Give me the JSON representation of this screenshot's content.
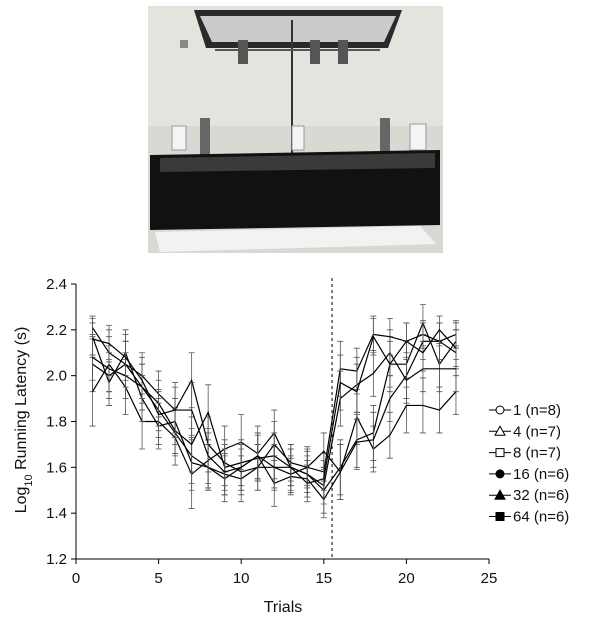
{
  "chart_data": {
    "type": "line",
    "xlabel": "Trials",
    "ylabel": "Log",
    "ylabel_subscript": "10",
    "ylabel_rest": " Running Latency (s)",
    "xlim": [
      0,
      25
    ],
    "xticks": [
      0,
      5,
      10,
      15,
      20,
      25
    ],
    "ylim": [
      1.2,
      2.4
    ],
    "yticks": [
      1.2,
      1.4,
      1.6,
      1.8,
      {
        "value": 2,
        "label": "2.0"
      },
      2.2,
      2.4
    ],
    "vline": 15.5,
    "legend": "right",
    "x": [
      1,
      2,
      3,
      4,
      5,
      6,
      7,
      8,
      9,
      10,
      11,
      12,
      13,
      14,
      15,
      16,
      17,
      18,
      19,
      20,
      21,
      22,
      23
    ],
    "series": [
      {
        "name": "1 (n=8)",
        "color": "#000000",
        "marker": "circle",
        "filled": false,
        "values": [
          2.05,
          2.0,
          2.05,
          1.95,
          1.85,
          1.75,
          1.65,
          1.6,
          1.57,
          1.55,
          1.6,
          1.6,
          1.57,
          1.6,
          1.67,
          1.58,
          1.82,
          1.68,
          1.74,
          1.87,
          1.87,
          1.85,
          1.93
        ],
        "errors": [
          0.12,
          0.1,
          0.1,
          0.1,
          0.09,
          0.1,
          0.12,
          0.1,
          0.09,
          0.1,
          0.1,
          0.09,
          0.08,
          0.09,
          0.08,
          0.12,
          0.12,
          0.1,
          0.1,
          0.12,
          0.12,
          0.1,
          0.1
        ]
      },
      {
        "name": "4 (n=7)",
        "color": "#000000",
        "marker": "triangle",
        "filled": false,
        "values": [
          1.93,
          2.05,
          1.95,
          1.8,
          1.8,
          1.73,
          1.57,
          1.63,
          1.68,
          1.71,
          1.66,
          1.75,
          1.6,
          1.57,
          1.5,
          1.6,
          1.72,
          1.75,
          2.05,
          2.05,
          2.23,
          2.05,
          2.15
        ],
        "errors": [
          0.15,
          0.12,
          0.12,
          0.12,
          0.1,
          0.12,
          0.15,
          0.12,
          0.1,
          0.12,
          0.12,
          0.1,
          0.1,
          0.1,
          0.1,
          0.12,
          0.12,
          0.12,
          0.12,
          0.1,
          0.08,
          0.1,
          0.08
        ]
      },
      {
        "name": "8 (n=7)",
        "color": "#000000",
        "marker": "square",
        "filled": false,
        "values": [
          2.17,
          1.97,
          2.1,
          1.9,
          1.78,
          1.8,
          1.62,
          1.6,
          1.55,
          1.6,
          1.65,
          1.53,
          1.56,
          1.55,
          1.46,
          1.58,
          1.71,
          1.72,
          1.9,
          2.0,
          2.15,
          2.15,
          2.1
        ],
        "errors": [
          0.08,
          0.1,
          0.1,
          0.1,
          0.1,
          0.1,
          0.12,
          0.1,
          0.1,
          0.1,
          0.1,
          0.1,
          0.08,
          0.08,
          0.08,
          0.12,
          0.12,
          0.12,
          0.1,
          0.1,
          0.08,
          0.08,
          0.1
        ]
      },
      {
        "name": "16 (n=6)",
        "color": "#000000",
        "marker": "circle",
        "filled": true,
        "values": [
          2.08,
          2.03,
          2.0,
          1.95,
          1.88,
          1.76,
          1.7,
          1.84,
          1.6,
          1.62,
          1.64,
          1.65,
          1.6,
          1.57,
          1.52,
          1.9,
          1.96,
          2.01,
          2.1,
          1.98,
          2.03,
          2.03,
          2.03
        ],
        "errors": [
          0.1,
          0.1,
          0.1,
          0.1,
          0.1,
          0.1,
          0.12,
          0.12,
          0.1,
          0.1,
          0.1,
          0.1,
          0.08,
          0.08,
          0.08,
          0.12,
          0.12,
          0.1,
          0.1,
          0.1,
          0.1,
          0.1,
          0.1
        ]
      },
      {
        "name": "32 (n=6)",
        "color": "#000000",
        "marker": "triangle",
        "filled": true,
        "values": [
          2.21,
          2.1,
          2.05,
          2.0,
          1.92,
          1.85,
          1.98,
          1.7,
          1.62,
          1.58,
          1.6,
          1.7,
          1.62,
          1.6,
          1.58,
          2.03,
          2.02,
          2.18,
          2.17,
          2.15,
          2.18,
          2.15,
          2.18
        ],
        "errors": [
          0.05,
          0.1,
          0.1,
          0.1,
          0.1,
          0.12,
          0.12,
          0.12,
          0.1,
          0.1,
          0.1,
          0.1,
          0.08,
          0.08,
          0.08,
          0.12,
          0.1,
          0.08,
          0.08,
          0.08,
          0.06,
          0.08,
          0.06
        ]
      },
      {
        "name": "64 (n=6)",
        "color": "#000000",
        "marker": "square",
        "filled": true,
        "values": [
          2.16,
          2.14,
          2.08,
          1.98,
          1.83,
          1.85,
          1.85,
          1.65,
          1.58,
          1.6,
          1.65,
          1.6,
          1.6,
          1.53,
          1.55,
          1.97,
          1.93,
          2.17,
          2.05,
          2.15,
          2.1,
          2.2,
          2.12
        ],
        "errors": [
          0.07,
          0.08,
          0.1,
          0.1,
          0.1,
          0.1,
          0.12,
          0.12,
          0.1,
          0.1,
          0.1,
          0.1,
          0.08,
          0.08,
          0.08,
          0.12,
          0.12,
          0.08,
          0.1,
          0.08,
          0.08,
          0.06,
          0.08
        ]
      }
    ]
  }
}
